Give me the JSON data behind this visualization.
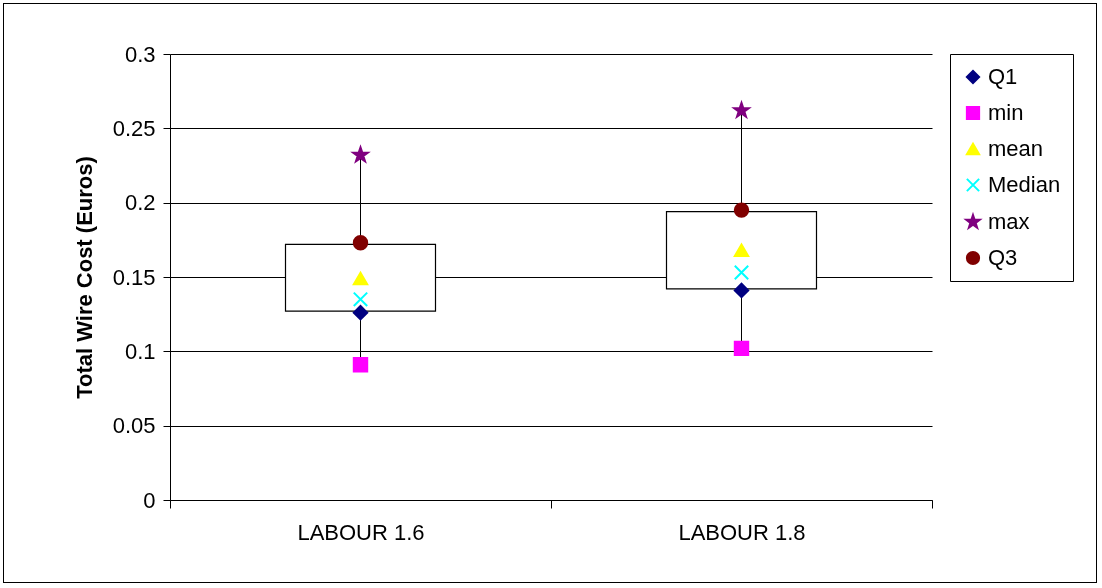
{
  "chart_data": {
    "type": "box",
    "ylabel": "Total Wire Cost (Euros)",
    "categories": [
      "LABOUR 1.6",
      "LABOUR 1.8"
    ],
    "boxes": [
      {
        "low": 0.091,
        "q1": 0.127,
        "q3": 0.172,
        "high": 0.232
      },
      {
        "low": 0.102,
        "q1": 0.142,
        "q3": 0.194,
        "high": 0.262
      }
    ],
    "series": [
      {
        "name": "Q1",
        "type": "scatter",
        "marker": "diamond",
        "color": "#000080",
        "values": [
          0.126,
          0.141
        ]
      },
      {
        "name": "min",
        "type": "scatter",
        "marker": "square",
        "color": "#ff00ff",
        "values": [
          0.091,
          0.102
        ]
      },
      {
        "name": "mean",
        "type": "scatter",
        "marker": "triangle",
        "color": "#ffff00",
        "values": [
          0.149,
          0.168
        ]
      },
      {
        "name": "Median",
        "type": "scatter",
        "marker": "cross",
        "color": "#00ffff",
        "values": [
          0.135,
          0.153
        ]
      },
      {
        "name": "max",
        "type": "scatter",
        "marker": "star",
        "color": "#800080",
        "values": [
          0.232,
          0.262
        ]
      },
      {
        "name": "Q3",
        "type": "scatter",
        "marker": "circle",
        "color": "#800000",
        "values": [
          0.173,
          0.195
        ]
      }
    ],
    "ylim": [
      0,
      0.3
    ],
    "yticks": [
      0,
      0.05,
      0.1,
      0.15,
      0.2,
      0.25,
      0.3
    ],
    "grid": "y",
    "legend": "right"
  }
}
